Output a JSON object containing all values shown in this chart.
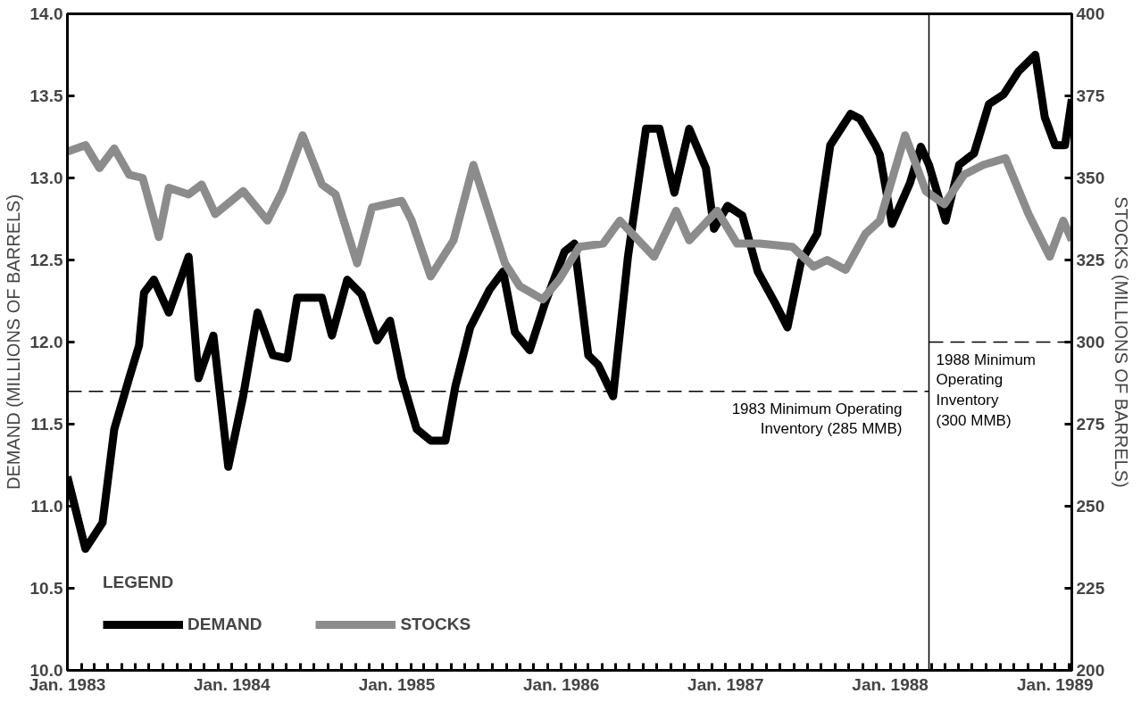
{
  "chart_data": {
    "type": "line",
    "ylabel": "DEMAND (MILLIONS OF BARRELS)",
    "y2label": "STOCKS (MILLIONS OF BARRELS)",
    "legend_title": "LEGEND",
    "legend": "bottom left",
    "line_style": "solid",
    "xlim": [
      "1983-01-01",
      "1989-02-07"
    ],
    "xticks": [
      {
        "value": "1983-01-01",
        "label": "Jan. 1983"
      },
      {
        "value": "1984-01-01",
        "label": "Jan. 1984"
      },
      {
        "value": "1985-01-01",
        "label": "Jan. 1985"
      },
      {
        "value": "1986-01-01",
        "label": "Jan. 1986"
      },
      {
        "value": "1987-01-01",
        "label": "Jan. 1987"
      },
      {
        "value": "1988-01-01",
        "label": "Jan. 1988"
      },
      {
        "value": "1989-01-01",
        "label": "Jan. 1989"
      }
    ],
    "ylim": [
      10.0,
      14.0
    ],
    "yticks": [
      {
        "value": 10,
        "label": "10.0"
      },
      10.5,
      {
        "value": 11,
        "label": "11.0"
      },
      11.5,
      {
        "value": 12,
        "label": "12.0"
      },
      12.5,
      {
        "value": 13,
        "label": "13.0"
      },
      13.5,
      {
        "value": 14,
        "label": "14.0"
      }
    ],
    "y2lim": [
      200,
      400
    ],
    "y2ticks": [
      200,
      225,
      250,
      275,
      300,
      325,
      350,
      375,
      400
    ],
    "series": [
      {
        "name": "DEMAND",
        "color": "#000000",
        "x": [
          "1983-01-01",
          "1983-02-10",
          "1983-03-20",
          "1983-04-15",
          "1983-05-18",
          "1983-06-09",
          "1983-06-20",
          "1983-07-12",
          "1983-08-14",
          "1983-09-27",
          "1983-10-19",
          "1983-11-21",
          "1983-12-24",
          "1984-01-26",
          "1984-02-27",
          "1984-04-01",
          "1984-05-03",
          "1984-05-25",
          "1984-07-19",
          "1984-08-10",
          "1984-09-13",
          "1984-10-15",
          "1984-11-18",
          "1984-12-17",
          "1985-01-12",
          "1985-02-14",
          "1985-03-17",
          "1985-04-19",
          "1985-05-11",
          "1985-06-13",
          "1985-07-26",
          "1985-08-25",
          "1985-09-20",
          "1985-10-23",
          "1985-11-25",
          "1986-01-08",
          "1986-01-30",
          "1986-03-02",
          "1986-03-24",
          "1986-04-26",
          "1986-05-29",
          "1986-07-08",
          "1986-08-07",
          "1986-09-09",
          "1986-10-12",
          "1986-11-18",
          "1986-12-06",
          "1987-01-05",
          "1987-02-07",
          "1987-03-13",
          "1987-04-22",
          "1987-05-18",
          "1987-06-17",
          "1987-07-23",
          "1987-08-21",
          "1987-10-05",
          "1987-10-26",
          "1987-11-29",
          "1987-12-09",
          "1988-01-05",
          "1988-02-14",
          "1988-03-09",
          "1988-03-27",
          "1988-05-03",
          "1988-06-02",
          "1988-07-05",
          "1988-08-07",
          "1988-09-09",
          "1988-10-12",
          "1988-11-18",
          "1988-12-09",
          "1989-01-01",
          "1989-01-23",
          "1989-02-07"
        ],
        "values": [
          11.18,
          10.74,
          10.9,
          11.47,
          11.78,
          11.98,
          12.3,
          12.38,
          12.18,
          12.52,
          11.78,
          12.04,
          11.24,
          11.67,
          12.18,
          11.92,
          11.9,
          12.27,
          12.27,
          12.04,
          12.38,
          12.29,
          12.01,
          12.13,
          11.78,
          11.47,
          11.4,
          11.4,
          11.73,
          12.09,
          12.32,
          12.43,
          12.06,
          11.95,
          12.23,
          12.55,
          12.6,
          11.92,
          11.86,
          11.67,
          12.52,
          13.3,
          13.3,
          12.91,
          13.3,
          13.06,
          12.69,
          12.83,
          12.77,
          12.43,
          12.23,
          12.09,
          12.49,
          12.66,
          13.2,
          13.39,
          13.36,
          13.2,
          13.14,
          12.72,
          12.97,
          13.19,
          13.08,
          12.74,
          13.08,
          13.15,
          13.45,
          13.51,
          13.65,
          13.75,
          13.37,
          13.2,
          13.2,
          13.48
        ]
      },
      {
        "name": "STOCKS",
        "color": "#8c8c8c",
        "axis": "y2",
        "x": [
          "1983-01-01",
          "1983-02-10",
          "1983-03-13",
          "1983-04-15",
          "1983-05-18",
          "1983-06-17",
          "1983-07-23",
          "1983-08-14",
          "1983-09-27",
          "1983-10-26",
          "1983-11-25",
          "1984-01-26",
          "1984-03-20",
          "1984-04-22",
          "1984-06-06",
          "1984-07-19",
          "1984-08-18",
          "1984-10-05",
          "1984-11-07",
          "1985-01-12",
          "1985-02-03",
          "1985-03-17",
          "1985-05-07",
          "1985-06-20",
          "1985-08-29",
          "1985-10-01",
          "1985-11-21",
          "1985-12-27",
          "1986-02-10",
          "1986-04-04",
          "1986-05-11",
          "1986-07-26",
          "1986-09-13",
          "1986-10-12",
          "1986-12-13",
          "1987-01-26",
          "1987-03-17",
          "1987-05-29",
          "1987-07-15",
          "1987-08-14",
          "1987-09-24",
          "1987-11-07",
          "1987-12-09",
          "1988-02-03",
          "1988-03-20",
          "1988-04-30",
          "1988-06-13",
          "1988-07-26",
          "1988-09-13",
          "1988-11-03",
          "1988-12-20",
          "1989-01-19",
          "1989-02-07"
        ],
        "values": [
          358,
          360,
          353,
          359,
          351,
          350,
          332,
          347,
          345,
          348,
          339,
          346,
          337,
          346,
          363,
          348,
          345,
          324,
          341,
          343,
          337,
          320,
          331,
          354,
          324,
          317,
          313,
          319,
          329,
          330,
          337,
          326,
          340,
          331,
          340,
          330,
          330,
          329,
          323,
          325,
          322,
          333,
          337,
          363,
          346,
          342,
          351,
          354,
          356,
          339,
          326,
          337,
          331
        ]
      }
    ],
    "ref_lines": [
      {
        "axis": "y2",
        "value": 285,
        "label": "1983 Minimum Operating\nInventory (285 MMB)",
        "color": "#000000",
        "line_style": "dashed"
      },
      {
        "axis": "y2",
        "value": 300,
        "label": "1988 Minimum\nOperating\nInventory\n(300 MMB)",
        "color": "#000000",
        "line_style": "dashed"
      },
      {
        "axis": "x",
        "value": "1988-03-27",
        "label": null,
        "color": "#000000",
        "line_style": "solid"
      }
    ]
  }
}
